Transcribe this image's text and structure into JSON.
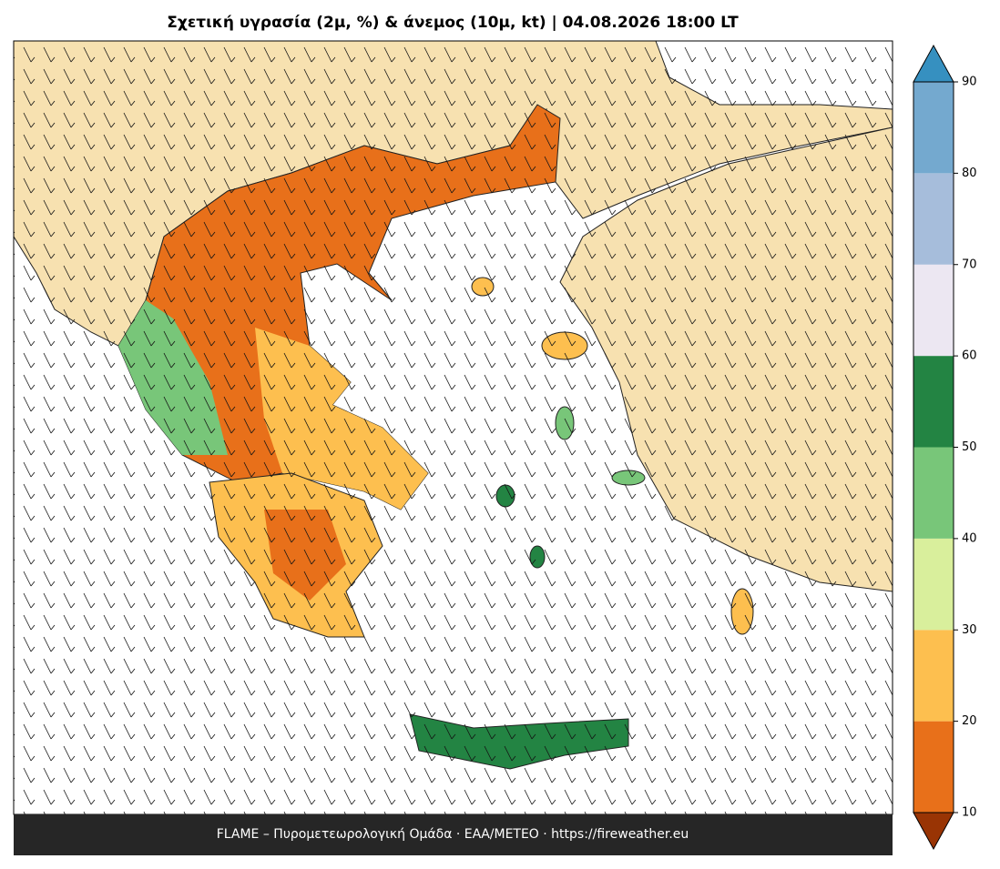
{
  "title": "Σχετική υγρασία (2μ, %) & άνεμος (10μ, kt)  |  04.08.2026 18:00 LT",
  "footer": "FLAME – Πυρομετεωρολογική Ομάδα · ΕΑΑ/METEO · https://fireweather.eu",
  "colorbar": {
    "ticks": [
      10,
      20,
      30,
      40,
      50,
      60,
      70,
      80,
      90
    ],
    "colors": [
      "#e8701a",
      "#fdbf4f",
      "#d9ef9c",
      "#78c679",
      "#238443",
      "#ece7f2",
      "#a6bddb",
      "#74a9cf"
    ],
    "under_color": "#993404",
    "over_color": "#3690c0"
  }
}
